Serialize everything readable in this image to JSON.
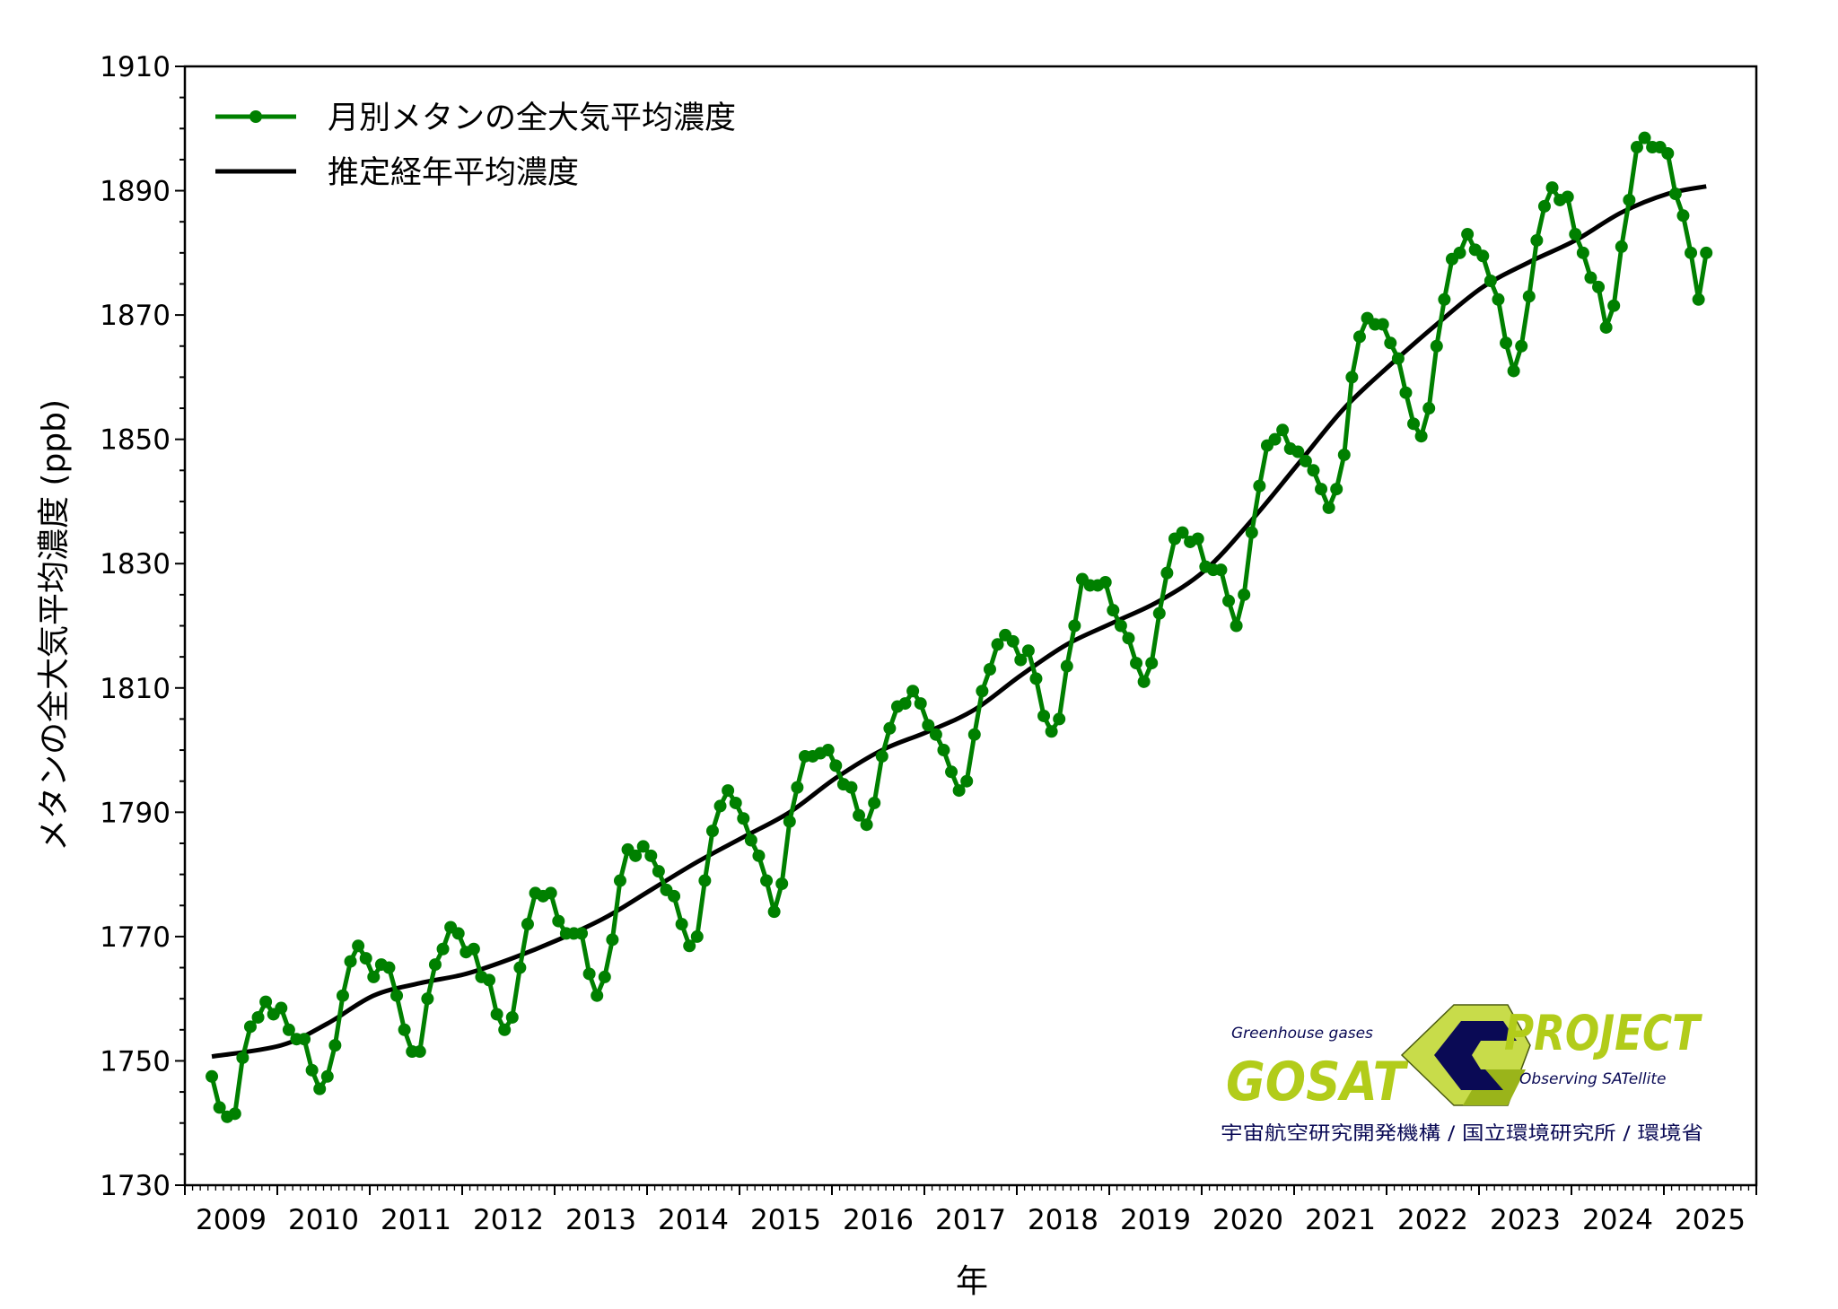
{
  "chart_data": {
    "type": "line",
    "title": "",
    "xlabel": "年",
    "ylabel": "メタンの全大気平均濃度 (ppb)",
    "xlim": [
      "2009-01",
      "2026-01"
    ],
    "ylim": [
      1730,
      1910
    ],
    "yticks": [
      1730,
      1750,
      1770,
      1790,
      1810,
      1830,
      1850,
      1870,
      1890,
      1910
    ],
    "xticklabels": [
      "2009",
      "2010",
      "2011",
      "2012",
      "2013",
      "2014",
      "2015",
      "2016",
      "2017",
      "2018",
      "2019",
      "2020",
      "2021",
      "2022",
      "2023",
      "2024",
      "2025"
    ],
    "grid": false,
    "legend_position": "top-left",
    "series": [
      {
        "name": "月別メタンの全大気平均濃度",
        "color": "#008000",
        "marker": "circle",
        "start": "2009-04",
        "frequency": "monthly",
        "values": [
          1747.5,
          1742.5,
          1741,
          1741.5,
          1750.5,
          1755.5,
          1757,
          1759.5,
          1757.5,
          1758.5,
          1755,
          1753.5,
          1753.5,
          1748.5,
          1745.5,
          1747.5,
          1752.5,
          1760.5,
          1766,
          1768.5,
          1766.5,
          1763.5,
          1765.5,
          1765,
          1760.5,
          1755,
          1751.5,
          1751.5,
          1760,
          1765.5,
          1768,
          1771.5,
          1770.5,
          1767.5,
          1768,
          1763.5,
          1763,
          1757.5,
          1755,
          1757,
          1765,
          1772,
          1777,
          1776.5,
          1777,
          1772.5,
          1770.5,
          1770.5,
          1770.5,
          1764,
          1760.5,
          1763.5,
          1769.5,
          1779,
          1784,
          1783,
          1784.5,
          1783,
          1780.5,
          1777.5,
          1776.5,
          1772,
          1768.5,
          1770,
          1779,
          1787,
          1791,
          1793.5,
          1791.5,
          1789,
          1785.5,
          1783,
          1779,
          1774,
          1778.5,
          1788.5,
          1794,
          1799,
          1799,
          1799.5,
          1800,
          1797.5,
          1794.5,
          1794,
          1789.5,
          1788,
          1791.5,
          1799,
          1803.5,
          1807,
          1807.5,
          1809.5,
          1807.5,
          1804,
          1802.5,
          1800,
          1796.5,
          1793.5,
          1795,
          1802.5,
          1809.5,
          1813,
          1817,
          1818.5,
          1817.5,
          1814.5,
          1816,
          1811.5,
          1805.5,
          1803,
          1805,
          1813.5,
          1820,
          1827.5,
          1826.5,
          1826.5,
          1827,
          1822.5,
          1820,
          1818,
          1814,
          1811,
          1814,
          1822,
          1828.5,
          1834,
          1835,
          1833.5,
          1834,
          1829.5,
          1829,
          1829,
          1824,
          1820,
          1825,
          1835,
          1842.5,
          1849,
          1850,
          1851.5,
          1848.5,
          1848,
          1846.5,
          1845,
          1842,
          1839,
          1842,
          1847.5,
          1860,
          1866.5,
          1869.5,
          1868.5,
          1868.5,
          1865.5,
          1863,
          1857.5,
          1852.5,
          1850.5,
          1855,
          1865,
          1872.5,
          1879,
          1880,
          1883,
          1880.5,
          1879.5,
          1875.5,
          1872.5,
          1865.5,
          1861,
          1865,
          1873,
          1882,
          1887.5,
          1890.5,
          1888.5,
          1889,
          1883,
          1880,
          1876,
          1874.5,
          1868,
          1871.5,
          1881,
          1888.5,
          1897,
          1898.5,
          1897,
          1897,
          1896,
          1889.5,
          1886,
          1880,
          1872.5,
          1880
        ]
      },
      {
        "name": "推定経年平均濃度",
        "color": "#000000",
        "marker": "none",
        "points": [
          [
            "2009-04",
            1750.7
          ],
          [
            "2010-01",
            1752.5
          ],
          [
            "2010-07",
            1756
          ],
          [
            "2011-01",
            1760.5
          ],
          [
            "2011-07",
            1762.5
          ],
          [
            "2012-01",
            1764
          ],
          [
            "2012-07",
            1766.5
          ],
          [
            "2013-01",
            1769.5
          ],
          [
            "2013-07",
            1773
          ],
          [
            "2014-01",
            1777.5
          ],
          [
            "2014-07",
            1782
          ],
          [
            "2015-01",
            1786
          ],
          [
            "2015-07",
            1790
          ],
          [
            "2016-01",
            1795.5
          ],
          [
            "2016-07",
            1800
          ],
          [
            "2017-01",
            1803
          ],
          [
            "2017-07",
            1806.5
          ],
          [
            "2018-01",
            1812
          ],
          [
            "2018-07",
            1817
          ],
          [
            "2019-01",
            1820.5
          ],
          [
            "2019-07",
            1824
          ],
          [
            "2020-01",
            1829
          ],
          [
            "2020-07",
            1837
          ],
          [
            "2021-01",
            1846
          ],
          [
            "2021-07",
            1855
          ],
          [
            "2022-01",
            1862
          ],
          [
            "2022-07",
            1868.5
          ],
          [
            "2023-01",
            1874.5
          ],
          [
            "2023-07",
            1878.5
          ],
          [
            "2024-01",
            1882
          ],
          [
            "2024-07",
            1886.5
          ],
          [
            "2025-01",
            1889.5
          ],
          [
            "2025-06",
            1890.7
          ]
        ]
      }
    ]
  },
  "logo": {
    "tagline_top": "Greenhouse gases",
    "name": "GOSAT",
    "project": "PROJECT",
    "tagline_bottom": "Observing SATellite",
    "colors": {
      "lime": "#b2cc1a",
      "navy": "#0a0a55"
    }
  },
  "credits": "宇宙航空研究開発機構 / 国立環境研究所 / 環境省"
}
